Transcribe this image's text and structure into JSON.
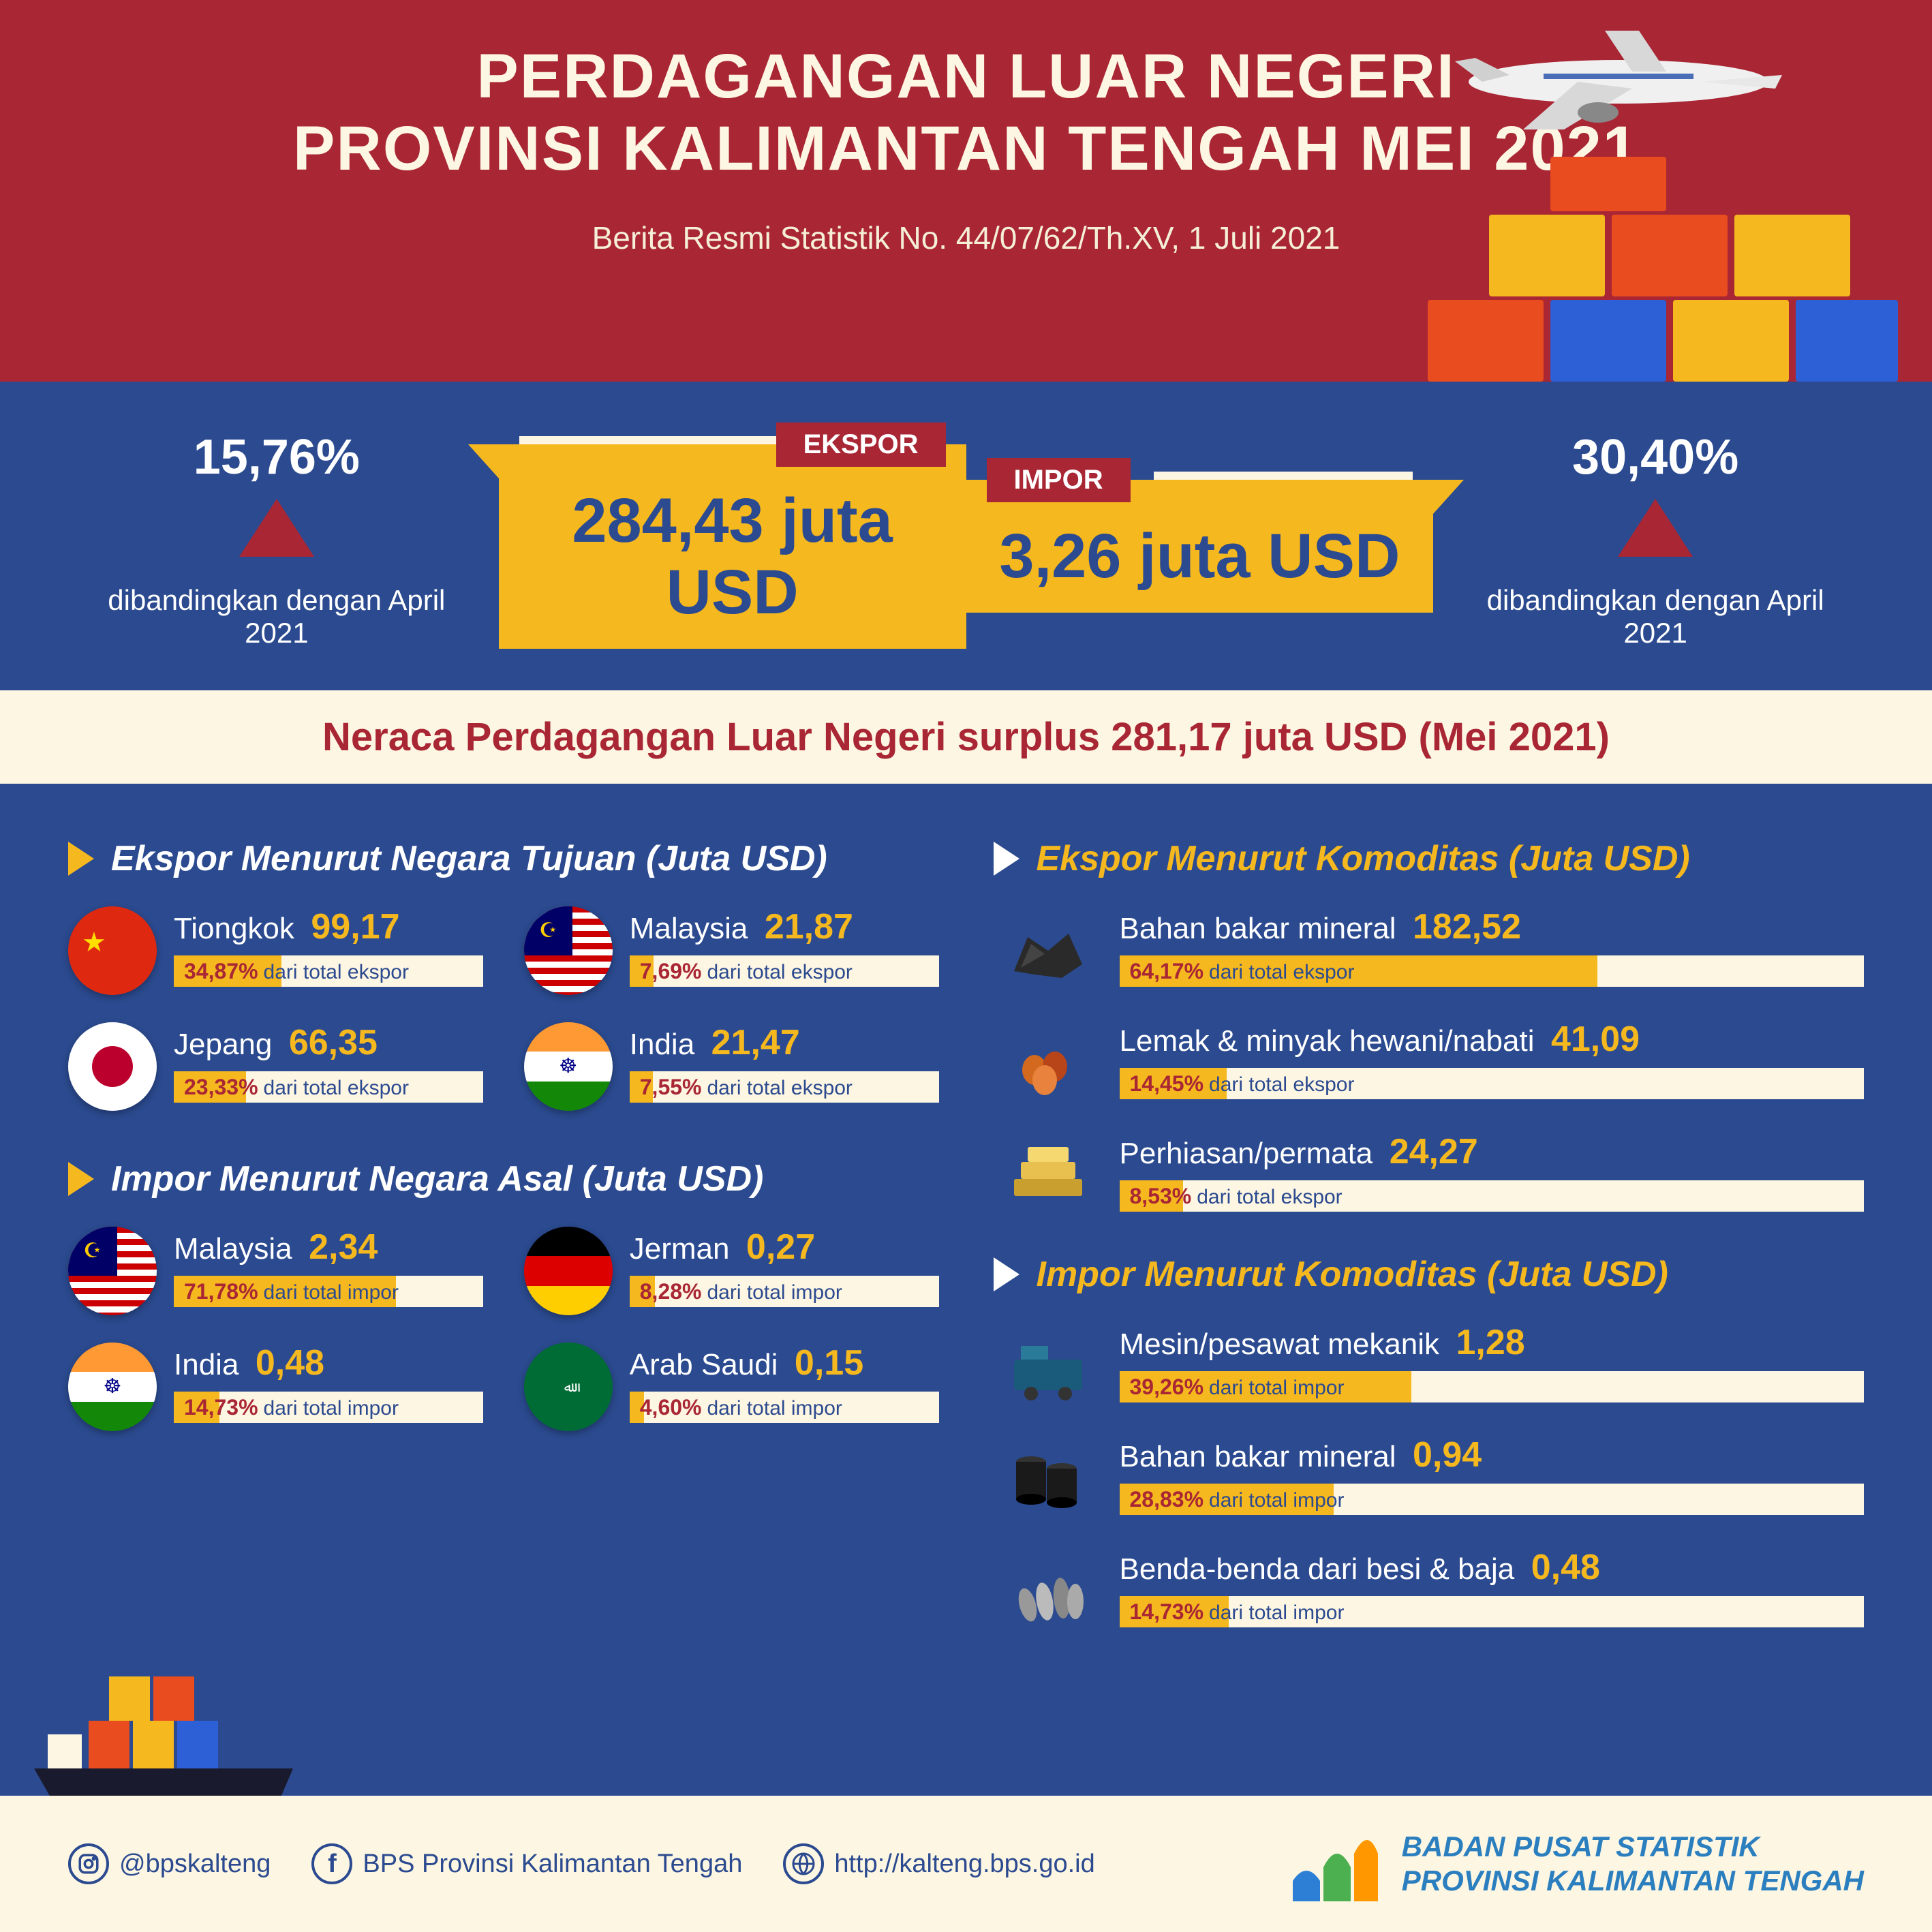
{
  "header": {
    "title_l1": "PERDAGANGAN LUAR NEGERI",
    "title_l2": "PROVINSI KALIMANTAN TENGAH MEI 2021",
    "subtitle": "Berita Resmi Statistik No. 44/07/62/Th.XV, 1 Juli 2021"
  },
  "colors": {
    "bg": "#2b4a8f",
    "red": "#a92634",
    "yellow": "#f5b81f",
    "cream": "#fdf6e3"
  },
  "ekspor": {
    "label": "EKSPOR",
    "value": "284,43 juta USD",
    "pct": "15,76%",
    "compare": "dibandingkan dengan April 2021"
  },
  "impor": {
    "label": "IMPOR",
    "value": "3,26 juta USD",
    "pct": "30,40%",
    "compare": "dibandingkan dengan April 2021"
  },
  "surplus": "Neraca Perdagangan Luar Negeri surplus 281,17 juta USD (Mei 2021)",
  "sections": {
    "ekspor_negara": "Ekspor Menurut Negara Tujuan (Juta USD)",
    "impor_negara": "Impor Menurut Negara Asal (Juta USD)",
    "ekspor_komoditas": "Ekspor Menurut Komoditas (Juta USD)",
    "impor_komoditas": "Impor Menurut Komoditas (Juta USD)"
  },
  "ekspor_negara": [
    {
      "name": "Tiongkok",
      "value": "99,17",
      "pct": "34,87%",
      "pct_num": 34.87,
      "note": "dari total ekspor"
    },
    {
      "name": "Malaysia",
      "value": "21,87",
      "pct": "7,69%",
      "pct_num": 7.69,
      "note": "dari total ekspor"
    },
    {
      "name": "Jepang",
      "value": "66,35",
      "pct": "23,33%",
      "pct_num": 23.33,
      "note": "dari total ekspor"
    },
    {
      "name": "India",
      "value": "21,47",
      "pct": "7,55%",
      "pct_num": 7.55,
      "note": "dari total ekspor"
    }
  ],
  "impor_negara": [
    {
      "name": "Malaysia",
      "value": "2,34",
      "pct": "71,78%",
      "pct_num": 71.78,
      "note": "dari total impor"
    },
    {
      "name": "Jerman",
      "value": "0,27",
      "pct": "8,28%",
      "pct_num": 8.28,
      "note": "dari total impor"
    },
    {
      "name": "India",
      "value": "0,48",
      "pct": "14,73%",
      "pct_num": 14.73,
      "note": "dari total impor"
    },
    {
      "name": "Arab Saudi",
      "value": "0,15",
      "pct": "4,60%",
      "pct_num": 4.6,
      "note": "dari total impor"
    }
  ],
  "ekspor_komoditas": [
    {
      "name": "Bahan bakar mineral",
      "value": "182,52",
      "pct": "64,17%",
      "pct_num": 64.17,
      "note": "dari total ekspor"
    },
    {
      "name": "Lemak & minyak hewani/nabati",
      "value": "41,09",
      "pct": "14,45%",
      "pct_num": 14.45,
      "note": "dari total ekspor"
    },
    {
      "name": "Perhiasan/permata",
      "value": "24,27",
      "pct": "8,53%",
      "pct_num": 8.53,
      "note": "dari total ekspor"
    }
  ],
  "impor_komoditas": [
    {
      "name": "Mesin/pesawat mekanik",
      "value": "1,28",
      "pct": "39,26%",
      "pct_num": 39.26,
      "note": "dari total impor"
    },
    {
      "name": "Bahan bakar mineral",
      "value": "0,94",
      "pct": "28,83%",
      "pct_num": 28.83,
      "note": "dari total impor"
    },
    {
      "name": "Benda-benda dari besi & baja",
      "value": "0,48",
      "pct": "14,73%",
      "pct_num": 14.73,
      "note": "dari total impor"
    }
  ],
  "footer": {
    "ig": "@bpskalteng",
    "fb": "BPS Provinsi Kalimantan Tengah",
    "web": "http://kalteng.bps.go.id",
    "org_l1": "BADAN PUSAT STATISTIK",
    "org_l2": "PROVINSI KALIMANTAN TENGAH"
  }
}
